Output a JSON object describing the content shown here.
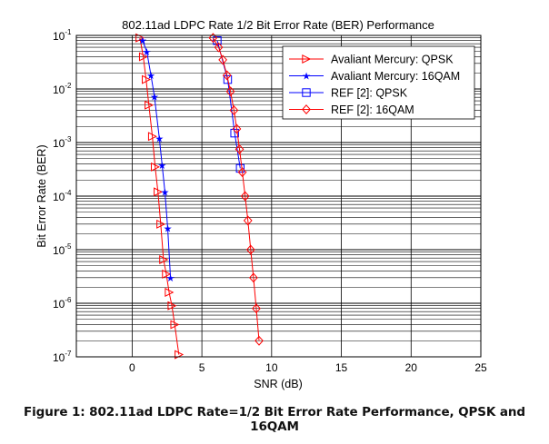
{
  "caption": "Figure 1: 802.11ad LDPC Rate=1/2 Bit Error Rate Performance, QPSK and 16QAM",
  "chart_data": {
    "type": "line",
    "title": "802.11ad LDPC Rate 1/2 Bit Error Rate (BER) Performance",
    "xlabel": "SNR (dB)",
    "ylabel": "Bit Error Rate (BER)",
    "xlim": [
      -4,
      25
    ],
    "ylim": [
      1e-07,
      0.1
    ],
    "yscale": "log",
    "xticks": [
      "0",
      "5",
      "10",
      "15",
      "20",
      "25"
    ],
    "yticks": [
      {
        "base": "10",
        "exp": "-1"
      },
      {
        "base": "10",
        "exp": "-2"
      },
      {
        "base": "10",
        "exp": "-3"
      },
      {
        "base": "10",
        "exp": "-4"
      },
      {
        "base": "10",
        "exp": "-5"
      },
      {
        "base": "10",
        "exp": "-6"
      },
      {
        "base": "10",
        "exp": "-7"
      }
    ],
    "grid": true,
    "legend_position": "top-right",
    "series": [
      {
        "name": "Avaliant Mercury: QPSK",
        "color": "#ff0000",
        "marker": "triangle-right",
        "x": [
          0.55,
          0.8,
          1.0,
          1.2,
          1.45,
          1.65,
          1.85,
          2.05,
          2.25,
          2.45,
          2.65,
          2.85,
          3.05,
          3.35
        ],
        "y": [
          0.09,
          0.04,
          0.015,
          0.005,
          0.0013,
          0.00035,
          0.00012,
          3e-05,
          6.5e-06,
          3.5e-06,
          1.6e-06,
          9e-07,
          4e-07,
          1.1e-07
        ]
      },
      {
        "name": "Avaliant Mercury: 16QAM",
        "color": "#0000ff",
        "marker": "star",
        "x": [
          0.75,
          1.05,
          1.35,
          1.6,
          1.95,
          2.15,
          2.35,
          2.55,
          2.75
        ],
        "y": [
          0.08,
          0.05,
          0.018,
          0.0072,
          0.0012,
          0.00038,
          0.00012,
          2.5e-05,
          3e-06
        ]
      },
      {
        "name": "REF [2]: QPSK",
        "color": "#0000ff",
        "marker": "square",
        "x": [
          6.1,
          6.85,
          7.35,
          7.75
        ],
        "y": [
          0.08,
          0.015,
          0.0015,
          0.00033
        ]
      },
      {
        "name": "REF [2]: 16QAM",
        "color": "#ff0000",
        "marker": "diamond",
        "x": [
          5.8,
          6.2,
          6.5,
          6.8,
          7.05,
          7.3,
          7.5,
          7.7,
          7.9,
          8.1,
          8.3,
          8.5,
          8.7,
          8.9,
          9.1
        ],
        "y": [
          0.09,
          0.06,
          0.035,
          0.018,
          0.009,
          0.004,
          0.0018,
          0.00075,
          0.00028,
          0.0001,
          3.5e-05,
          1e-05,
          3e-06,
          8e-07,
          2e-07
        ]
      }
    ]
  }
}
